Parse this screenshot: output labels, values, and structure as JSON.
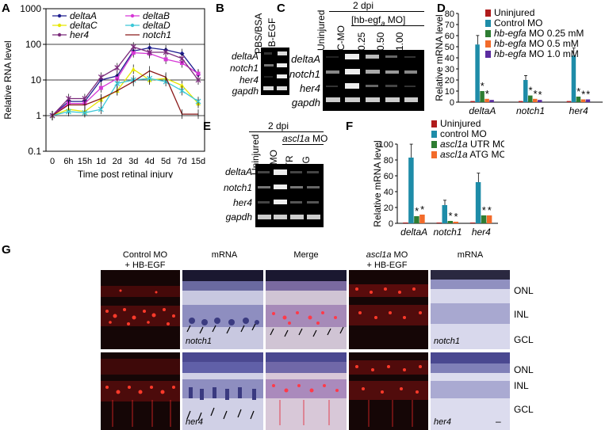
{
  "panels": {
    "A": "A",
    "B": "B",
    "C": "C",
    "D": "D",
    "E": "E",
    "F": "F",
    "G": "G"
  },
  "chart_data": [
    {
      "panel": "A",
      "type": "line",
      "ylabel": "Relative RNA level",
      "xlabel": "Time post retinal injury",
      "yscale": "log",
      "ylim": [
        0.1,
        1000
      ],
      "yticks": [
        "0.1",
        "1",
        "10",
        "100",
        "1000"
      ],
      "categories": [
        "0",
        "6h",
        "15h",
        "1d",
        "2d",
        "3d",
        "4d",
        "5d",
        "7d",
        "15d"
      ],
      "series": [
        {
          "name": "deltaA",
          "color": "#1f1f8f",
          "marker": "diamond",
          "values": [
            1,
            2.5,
            2.5,
            10,
            13,
            65,
            80,
            70,
            55,
            14
          ]
        },
        {
          "name": "deltaB",
          "color": "#d638d6",
          "marker": "square",
          "values": [
            1,
            2.2,
            2.2,
            6,
            11,
            58,
            55,
            38,
            30,
            15
          ]
        },
        {
          "name": "deltaC",
          "color": "#e6e600",
          "marker": "triangle",
          "values": [
            1,
            1.5,
            1.3,
            2.8,
            5,
            20,
            10,
            11,
            7,
            2.2
          ]
        },
        {
          "name": "deltaD",
          "color": "#3cc8d8",
          "marker": "x",
          "values": [
            1,
            1.3,
            1.2,
            1.5,
            8,
            10,
            11,
            9,
            5,
            2.5
          ]
        },
        {
          "name": "her4",
          "color": "#7a2a7a",
          "marker": "star",
          "values": [
            1,
            3,
            3,
            12,
            22,
            85,
            60,
            60,
            40,
            10
          ]
        },
        {
          "name": "notch1",
          "color": "#8b1a1a",
          "marker": "none",
          "values": [
            1,
            2,
            2,
            3,
            5,
            9,
            18,
            12,
            1.1,
            1.1
          ]
        }
      ]
    },
    {
      "panel": "D",
      "type": "bar",
      "ylabel": "Relative mRNA level",
      "ylim": [
        0,
        80
      ],
      "yticks": [
        "0",
        "10",
        "20",
        "30",
        "40",
        "50",
        "60",
        "70",
        "80"
      ],
      "categories": [
        "deltaA",
        "notch1",
        "her4"
      ],
      "series": [
        {
          "name": "Uninjured",
          "color": "#b01c1c",
          "values": [
            1,
            1,
            1
          ]
        },
        {
          "name": "Control MO",
          "color": "#1e8ca8",
          "values": [
            52,
            20,
            42
          ]
        },
        {
          "name": "hb-egfa MO 0.25 mM",
          "color": "#2e7d32",
          "values": [
            10,
            6,
            5
          ]
        },
        {
          "name": "hb-egfa MO 0.5 mM",
          "color": "#f26b2a",
          "values": [
            3,
            3,
            2.5
          ]
        },
        {
          "name": "hb-egfa MO 1.0 mM",
          "color": "#5b2ca0",
          "values": [
            2,
            2,
            2.5
          ]
        }
      ]
    },
    {
      "panel": "F",
      "type": "bar",
      "ylabel": "Relative mRNA level",
      "ylim": [
        0,
        100
      ],
      "yticks": [
        "0",
        "20",
        "40",
        "60",
        "80",
        "100"
      ],
      "categories": [
        "deltaA",
        "notch1",
        "her4"
      ],
      "series": [
        {
          "name": "Uninjured",
          "color": "#b01c1c",
          "values": [
            1,
            1,
            1
          ]
        },
        {
          "name": "control MO",
          "color": "#1e8ca8",
          "values": [
            83,
            23,
            52
          ]
        },
        {
          "name": "ascl1a UTR MO",
          "color": "#2e7d32",
          "values": [
            9,
            3,
            10
          ]
        },
        {
          "name": "ascl1a ATG MO",
          "color": "#f26b2a",
          "values": [
            11,
            2,
            10
          ]
        }
      ]
    }
  ],
  "panelB": {
    "cols": [
      "PBS/BSA",
      "HB-EGF"
    ],
    "rows": [
      "deltaA",
      "notch1",
      "her4",
      "gapdh"
    ]
  },
  "panelC": {
    "top": "2 dpi",
    "group_prefix": "[hb-egf",
    "group_sub": "a",
    "group_suffix": " MO]",
    "cols": [
      "Uninjured",
      "C-MO",
      "0.25",
      "0.50",
      "1.00"
    ],
    "rows": [
      "deltaA",
      "notch1",
      "her4",
      "gapdh"
    ]
  },
  "panelE": {
    "top": "2 dpi",
    "group_italic": "ascl1a",
    "group_suffix": " MO",
    "cols": [
      "Uninjured",
      "C-MO",
      "UTR",
      "ATG"
    ],
    "rows": [
      "deltaA",
      "notch1",
      "her4",
      "gapdh"
    ]
  },
  "panelG": {
    "headers": {
      "h1_line1": "Control MO",
      "h1_line2": "+ HB-EGF",
      "h2": "mRNA",
      "h3": "Merge",
      "h4_italic": "ascl1a",
      "h4_rest": " MO",
      "h4_line2": "+ HB-EGF",
      "h5": "mRNA"
    },
    "layers": [
      "ONL",
      "INL",
      "GCL"
    ],
    "row1_gene": "notch1",
    "row2_gene": "her4",
    "scale_bar": "–"
  },
  "stars": {
    "d": "*",
    "f": "*"
  }
}
